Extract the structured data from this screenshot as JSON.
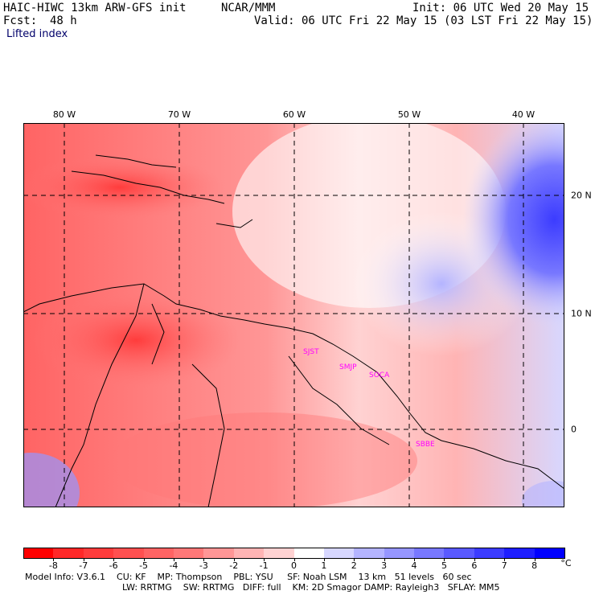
{
  "header": {
    "model_title": "HAIC-HIWC 13km ARW-GFS init",
    "center": "NCAR/MMM",
    "init": "Init: 06 UTC Wed 20 May 15",
    "fcst_label": "Fcst:",
    "fcst_value": "48 h",
    "valid": "Valid: 06 UTC Fri 22 May 15 (03 LST Fri 22 May 15)",
    "field": "Lifted index"
  },
  "axes": {
    "lon_labels": [
      "80 W",
      "70 W",
      "60 W",
      "50 W",
      "40 W"
    ],
    "lat_labels": [
      "20 N",
      "10 N",
      "0"
    ]
  },
  "stations": [
    "SJST",
    "SMJP",
    "SOCA",
    "SBBE"
  ],
  "colorbar": {
    "labels": [
      "-8",
      "-7",
      "-6",
      "-5",
      "-4",
      "-3",
      "-2",
      "-1",
      "0",
      "1",
      "2",
      "3",
      "4",
      "5",
      "6",
      "7",
      "8"
    ],
    "unit": "°C",
    "colors": [
      "#ff0000",
      "#ff2828",
      "#ff3c3c",
      "#ff5050",
      "#ff6464",
      "#ff7878",
      "#ff9696",
      "#ffb4b4",
      "#ffd2d2",
      "#ffffff",
      "#d7d7ff",
      "#b4b4ff",
      "#9696ff",
      "#7878ff",
      "#5a5aff",
      "#3c3cff",
      "#1e1eff",
      "#0000ff"
    ]
  },
  "footer": {
    "line1": "Model Info: V3.6.1    CU: KF    MP: Thompson    PBL: YSU     SF: Noah LSM    13 km   51 levels   60 sec",
    "line2": "LW: RRTMG    SW: RRTMG   DIFF: full    KM: 2D Smagor DAMP: Rayleigh3   SFLAY: MM5"
  }
}
